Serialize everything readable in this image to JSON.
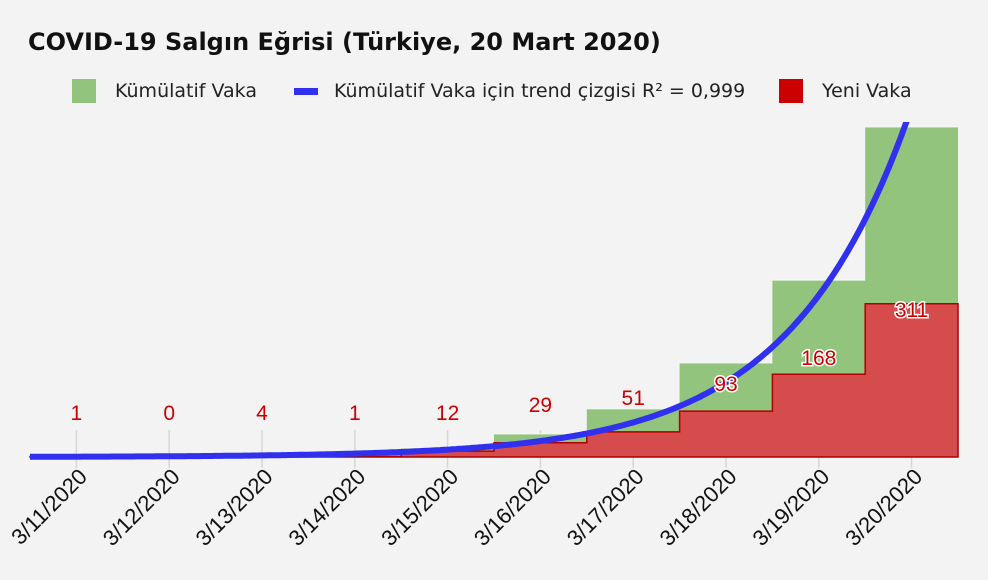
{
  "chart_data": {
    "type": "bar",
    "title": "COVID-19 Salgın Eğrisi (Türkiye, 20 Mart 2020)",
    "xlabel": "",
    "ylabel": "",
    "categories": [
      "3/11/2020",
      "3/12/2020",
      "3/13/2020",
      "3/14/2020",
      "3/15/2020",
      "3/16/2020",
      "3/17/2020",
      "3/18/2020",
      "3/19/2020",
      "3/20/2020"
    ],
    "series": [
      {
        "name": "Kümülatif Vaka",
        "kind": "step-area",
        "color": "#93c47d",
        "values": [
          1,
          1,
          5,
          6,
          18,
          47,
          98,
          191,
          359,
          670
        ]
      },
      {
        "name": "Yeni Vaka",
        "kind": "step-area",
        "color": "#d64b4b",
        "edge_color": "#b00000",
        "values": [
          1,
          0,
          4,
          1,
          12,
          29,
          51,
          93,
          168,
          311
        ]
      }
    ],
    "trendline": {
      "name": "Kümülatif Vaka için trend çizgisi R² = 0,999",
      "type": "exponential",
      "color": "#3030ee",
      "r_squared": "0,999"
    },
    "data_labels": [
      "1",
      "0",
      "4",
      "1",
      "12",
      "29",
      "51",
      "93",
      "168",
      "311"
    ],
    "ylim": [
      0,
      680
    ],
    "grid": false,
    "legend_position": "top",
    "legend_swatch_colors": {
      "cumulative": "#93c47d",
      "trend": "#3030ee",
      "new": "#cc0000"
    },
    "label_color": "#cc0000"
  }
}
